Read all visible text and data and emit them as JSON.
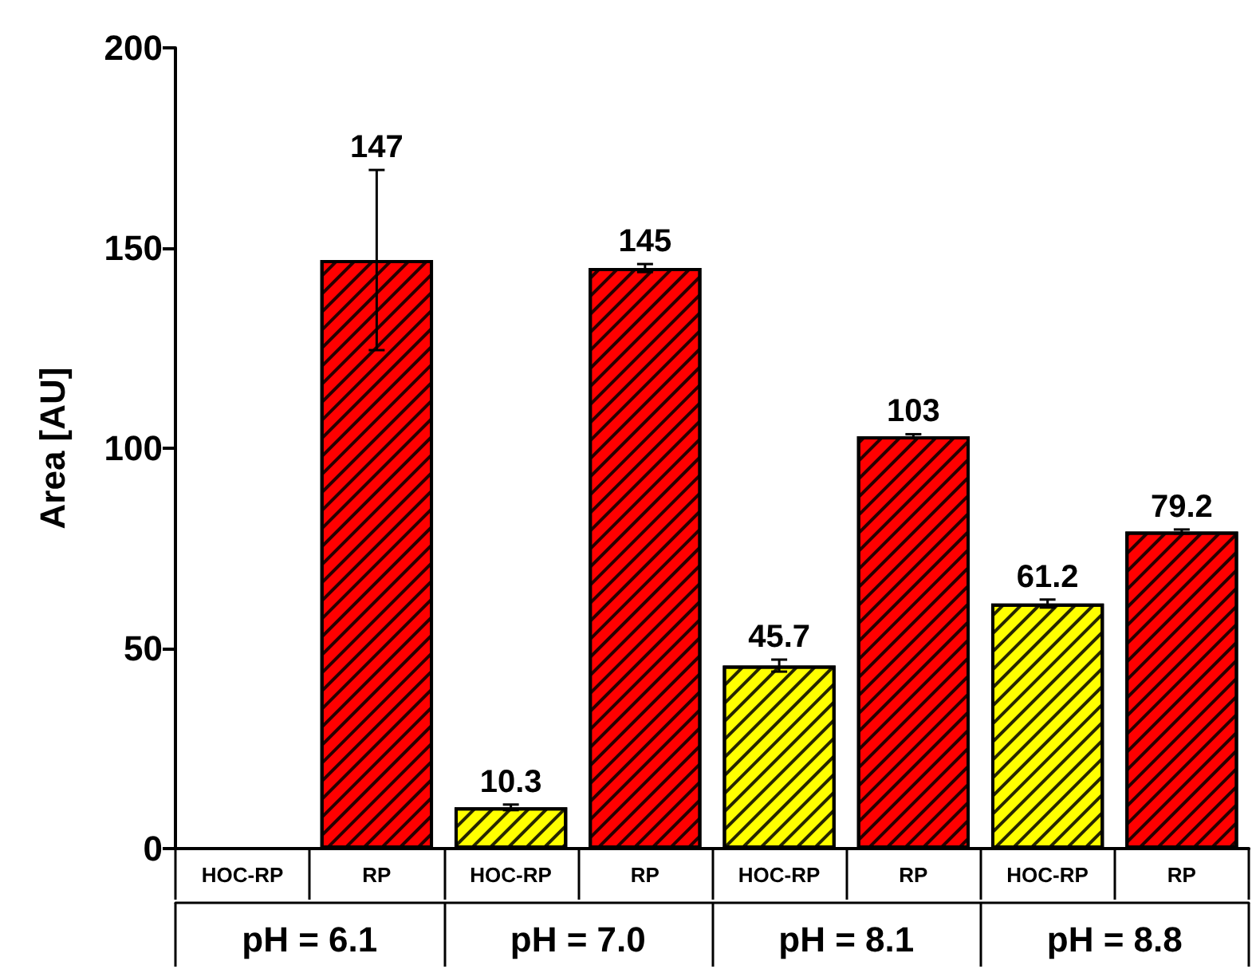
{
  "chart_data": {
    "type": "bar",
    "ylabel": "Area [AU]",
    "categories": [
      "HOC-RP",
      "RP",
      "HOC-RP",
      "RP",
      "HOC-RP",
      "RP",
      "HOC-RP",
      "RP"
    ],
    "annotations": [
      "pH = 6.1",
      "pH = 7.0",
      "pH = 8.1",
      "pH = 8.8"
    ],
    "values": [
      null,
      147,
      10.3,
      145,
      45.7,
      103,
      61.2,
      79.2
    ],
    "errors": [
      null,
      22.5,
      0.7,
      1,
      1.5,
      0.5,
      1,
      0.5
    ],
    "colors": [
      "#ffff00",
      "#ff0000",
      "#ffff00",
      "#ff0000",
      "#ffff00",
      "#ff0000",
      "#ffff00",
      "#ff0000"
    ],
    "data_labels": true,
    "ylim": [
      0,
      200
    ],
    "yticks": [
      0,
      50,
      100,
      150,
      200
    ],
    "grid": false
  }
}
